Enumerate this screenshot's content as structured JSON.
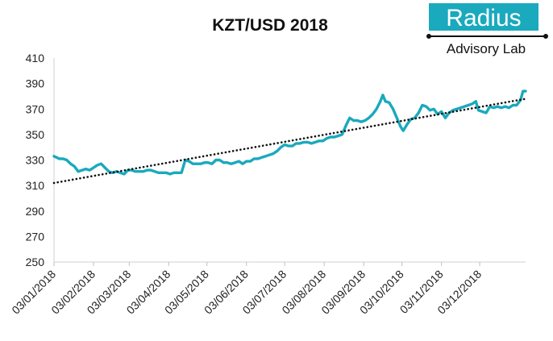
{
  "chart_data": {
    "type": "line",
    "title": "KZT/USD 2018",
    "xlabel": "",
    "ylabel": "",
    "ylim": [
      250,
      410
    ],
    "yticks": [
      250,
      270,
      290,
      310,
      330,
      350,
      370,
      390,
      410
    ],
    "xticks": [
      "03/01/2018",
      "03/02/2018",
      "03/03/2018",
      "03/04/2018",
      "03/05/2018",
      "03/06/2018",
      "03/07/2018",
      "03/08/2018",
      "03/09/2018",
      "03/10/2018",
      "03/11/2018",
      "03/12/2018"
    ],
    "grid": false,
    "series": [
      {
        "color": "#1aa9bd",
        "points": [
          [
            "2018-01-03",
            333
          ],
          [
            "2018-01-05",
            332
          ],
          [
            "2018-01-07",
            331
          ],
          [
            "2018-01-10",
            331
          ],
          [
            "2018-01-13",
            330
          ],
          [
            "2018-01-16",
            327
          ],
          [
            "2018-01-19",
            325
          ],
          [
            "2018-01-22",
            321
          ],
          [
            "2018-01-25",
            322
          ],
          [
            "2018-01-28",
            323
          ],
          [
            "2018-01-31",
            322
          ],
          [
            "2018-02-03",
            324
          ],
          [
            "2018-02-06",
            326
          ],
          [
            "2018-02-09",
            327
          ],
          [
            "2018-02-12",
            324
          ],
          [
            "2018-02-15",
            321
          ],
          [
            "2018-02-18",
            320
          ],
          [
            "2018-02-21",
            321
          ],
          [
            "2018-02-24",
            320
          ],
          [
            "2018-02-27",
            319
          ],
          [
            "2018-03-02",
            322
          ],
          [
            "2018-03-05",
            322
          ],
          [
            "2018-03-08",
            321
          ],
          [
            "2018-03-11",
            321
          ],
          [
            "2018-03-14",
            321
          ],
          [
            "2018-03-17",
            322
          ],
          [
            "2018-03-20",
            322
          ],
          [
            "2018-03-23",
            321
          ],
          [
            "2018-03-26",
            320
          ],
          [
            "2018-03-29",
            320
          ],
          [
            "2018-04-01",
            320
          ],
          [
            "2018-04-04",
            319
          ],
          [
            "2018-04-07",
            320
          ],
          [
            "2018-04-10",
            320
          ],
          [
            "2018-04-13",
            320
          ],
          [
            "2018-04-16",
            330
          ],
          [
            "2018-04-19",
            329
          ],
          [
            "2018-04-22",
            327
          ],
          [
            "2018-04-25",
            327
          ],
          [
            "2018-04-28",
            327
          ],
          [
            "2018-05-01",
            328
          ],
          [
            "2018-05-04",
            328
          ],
          [
            "2018-05-07",
            327
          ],
          [
            "2018-05-10",
            330
          ],
          [
            "2018-05-13",
            330
          ],
          [
            "2018-05-16",
            328
          ],
          [
            "2018-05-19",
            328
          ],
          [
            "2018-05-22",
            327
          ],
          [
            "2018-05-25",
            328
          ],
          [
            "2018-05-28",
            329
          ],
          [
            "2018-05-31",
            327
          ],
          [
            "2018-06-03",
            329
          ],
          [
            "2018-06-06",
            329
          ],
          [
            "2018-06-09",
            331
          ],
          [
            "2018-06-12",
            331
          ],
          [
            "2018-06-15",
            332
          ],
          [
            "2018-06-18",
            333
          ],
          [
            "2018-06-21",
            334
          ],
          [
            "2018-06-24",
            335
          ],
          [
            "2018-06-27",
            337
          ],
          [
            "2018-06-30",
            340
          ],
          [
            "2018-07-03",
            342
          ],
          [
            "2018-07-06",
            341
          ],
          [
            "2018-07-09",
            341
          ],
          [
            "2018-07-12",
            343
          ],
          [
            "2018-07-15",
            343
          ],
          [
            "2018-07-18",
            344
          ],
          [
            "2018-07-21",
            344
          ],
          [
            "2018-07-24",
            343
          ],
          [
            "2018-07-27",
            344
          ],
          [
            "2018-07-30",
            345
          ],
          [
            "2018-08-02",
            345
          ],
          [
            "2018-08-05",
            347
          ],
          [
            "2018-08-08",
            348
          ],
          [
            "2018-08-11",
            348
          ],
          [
            "2018-08-14",
            349
          ],
          [
            "2018-08-17",
            350
          ],
          [
            "2018-08-20",
            357
          ],
          [
            "2018-08-23",
            363
          ],
          [
            "2018-08-26",
            361
          ],
          [
            "2018-08-29",
            361
          ],
          [
            "2018-09-01",
            360
          ],
          [
            "2018-09-04",
            361
          ],
          [
            "2018-09-07",
            363
          ],
          [
            "2018-09-10",
            366
          ],
          [
            "2018-09-13",
            370
          ],
          [
            "2018-09-16",
            376
          ],
          [
            "2018-09-18",
            381
          ],
          [
            "2018-09-20",
            376
          ],
          [
            "2018-09-23",
            375
          ],
          [
            "2018-09-26",
            370
          ],
          [
            "2018-09-29",
            363
          ],
          [
            "2018-10-02",
            356
          ],
          [
            "2018-10-04",
            353
          ],
          [
            "2018-10-07",
            358
          ],
          [
            "2018-10-10",
            362
          ],
          [
            "2018-10-13",
            363
          ],
          [
            "2018-10-16",
            367
          ],
          [
            "2018-10-19",
            373
          ],
          [
            "2018-10-22",
            372
          ],
          [
            "2018-10-25",
            369
          ],
          [
            "2018-10-28",
            370
          ],
          [
            "2018-10-31",
            366
          ],
          [
            "2018-11-03",
            368
          ],
          [
            "2018-11-06",
            363
          ],
          [
            "2018-11-09",
            367
          ],
          [
            "2018-11-12",
            369
          ],
          [
            "2018-11-15",
            370
          ],
          [
            "2018-11-18",
            371
          ],
          [
            "2018-11-21",
            372
          ],
          [
            "2018-11-24",
            373
          ],
          [
            "2018-11-27",
            374
          ],
          [
            "2018-11-30",
            376
          ],
          [
            "2018-12-02",
            369
          ],
          [
            "2018-12-05",
            368
          ],
          [
            "2018-12-08",
            367
          ],
          [
            "2018-12-11",
            372
          ],
          [
            "2018-12-14",
            371
          ],
          [
            "2018-12-17",
            372
          ],
          [
            "2018-12-20",
            371
          ],
          [
            "2018-12-23",
            372
          ],
          [
            "2018-12-26",
            371
          ],
          [
            "2018-12-29",
            373
          ],
          [
            "2019-01-01",
            373
          ],
          [
            "2019-01-04",
            377
          ],
          [
            "2019-01-06",
            384
          ],
          [
            "2019-01-08",
            384
          ]
        ]
      }
    ],
    "trendline": {
      "style": "dotted",
      "color": "#111111",
      "start": [
        "2018-01-03",
        312
      ],
      "end": [
        "2019-01-08",
        378
      ]
    }
  },
  "logo": {
    "name": "Radius",
    "tagline": "Advisory Lab",
    "accent": "#1aa9bd"
  }
}
